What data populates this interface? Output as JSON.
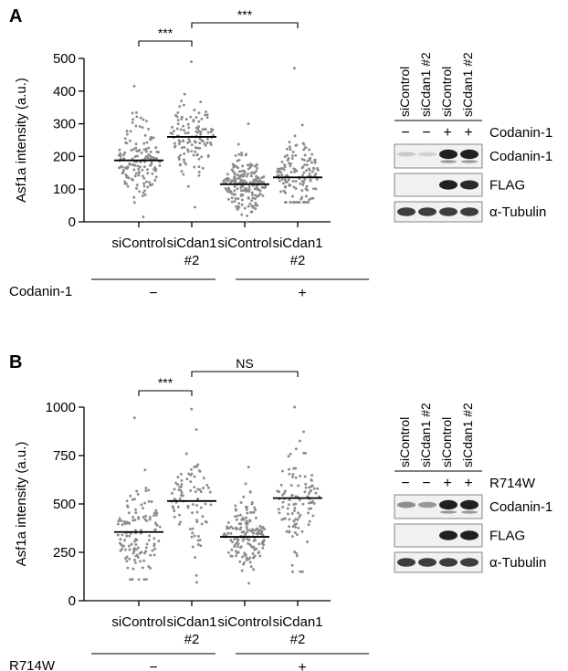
{
  "chart_data": [
    {
      "panel": "A",
      "type": "scatter",
      "ylabel": "Asf1a intensity (a.u.)",
      "ylim": [
        0,
        500
      ],
      "yticks": [
        0,
        100,
        200,
        300,
        400,
        500
      ],
      "categories": [
        {
          "line1": "siControl",
          "line2": ""
        },
        {
          "line1": "siCdan1",
          "line2": "#2"
        },
        {
          "line1": "siControl",
          "line2": ""
        },
        {
          "line1": "siCdan1",
          "line2": "#2"
        }
      ],
      "medians": [
        188,
        260,
        115,
        136
      ],
      "ranges": [
        [
          15,
          415
        ],
        [
          45,
          490
        ],
        [
          0,
          300
        ],
        [
          60,
          470
        ]
      ],
      "counts": [
        150,
        120,
        200,
        150
      ],
      "condition": {
        "name": "Codanin-1",
        "groups": [
          "−",
          "+"
        ]
      },
      "significance": [
        {
          "from": 0,
          "to": 1,
          "label": "***"
        },
        {
          "from": 1,
          "to": 3,
          "label": "***"
        }
      ],
      "blot": {
        "lanes": [
          "siControl",
          "siCdan1 #2",
          "siControl",
          "siCdan1 #2"
        ],
        "treatment": {
          "name": "Codanin-1",
          "marks": [
            "−",
            "−",
            "+",
            "+"
          ]
        },
        "rows": [
          {
            "label": "Codanin-1",
            "intensities": [
              0.15,
              0.1,
              1.0,
              1.0
            ]
          },
          {
            "label": "FLAG",
            "intensities": [
              0.0,
              0.0,
              1.0,
              0.95
            ]
          },
          {
            "label": "α-Tubulin",
            "intensities": [
              0.85,
              0.85,
              0.85,
              0.85
            ]
          }
        ]
      }
    },
    {
      "panel": "B",
      "type": "scatter",
      "ylabel": "Asf1a intensity (a.u.)",
      "ylim": [
        0,
        1000
      ],
      "yticks": [
        0,
        250,
        500,
        750,
        1000
      ],
      "categories": [
        {
          "line1": "siControl",
          "line2": ""
        },
        {
          "line1": "siCdan1",
          "line2": "#2"
        },
        {
          "line1": "siControl",
          "line2": ""
        },
        {
          "line1": "siCdan1",
          "line2": "#2"
        }
      ],
      "medians": [
        355,
        515,
        330,
        530
      ],
      "ranges": [
        [
          110,
          945
        ],
        [
          95,
          990
        ],
        [
          90,
          690
        ],
        [
          150,
          1000
        ]
      ],
      "counts": [
        130,
        90,
        160,
        110
      ],
      "condition": {
        "name": "R714W",
        "groups": [
          "−",
          "+"
        ]
      },
      "significance": [
        {
          "from": 0,
          "to": 1,
          "label": "***"
        },
        {
          "from": 1,
          "to": 3,
          "label": "NS"
        }
      ],
      "blot": {
        "lanes": [
          "siControl",
          "siCdan1 #2",
          "siControl",
          "siCdan1 #2"
        ],
        "treatment": {
          "name": "R714W",
          "marks": [
            "−",
            "−",
            "+",
            "+"
          ]
        },
        "rows": [
          {
            "label": "Codanin-1",
            "intensities": [
              0.45,
              0.4,
              1.0,
              1.0
            ]
          },
          {
            "label": "FLAG",
            "intensities": [
              0.0,
              0.0,
              1.0,
              1.0
            ]
          },
          {
            "label": "α-Tubulin",
            "intensities": [
              0.85,
              0.85,
              0.85,
              0.85
            ]
          }
        ]
      }
    }
  ]
}
